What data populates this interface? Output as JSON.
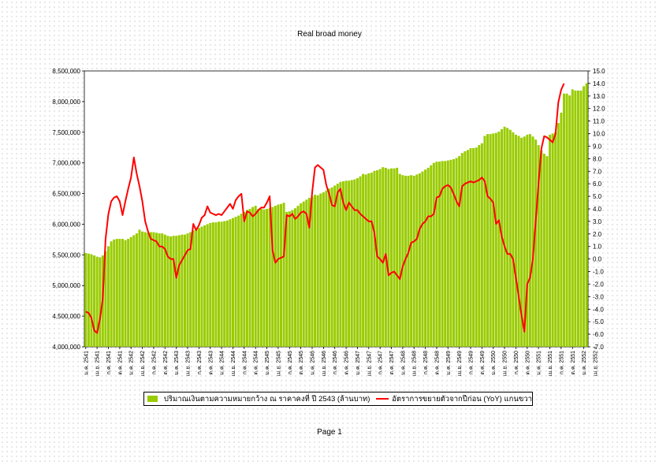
{
  "page": {
    "footer": "Page 1"
  },
  "chart_data": {
    "type": "bar+line",
    "title": "Real broad money",
    "legend": {
      "placement": "bottom"
    },
    "y_left": {
      "min": 4000000,
      "max": 8500000,
      "step": 500000,
      "tick_labels": [
        "4,000,000",
        "4,500,000",
        "5,000,000",
        "5,500,000",
        "6,000,000",
        "6,500,000",
        "7,000,000",
        "7,500,000",
        "8,000,000",
        "8,500,000"
      ]
    },
    "y_right": {
      "min": -7.0,
      "max": 15.0,
      "step": 1.0,
      "tick_labels": [
        "-7.0",
        "-6.0",
        "-5.0",
        "-4.0",
        "-3.0",
        "-2.0",
        "-1.0",
        "0.0",
        "1.0",
        "2.0",
        "3.0",
        "4.0",
        "5.0",
        "6.0",
        "7.0",
        "8.0",
        "9.0",
        "10.0",
        "11.0",
        "12.0",
        "13.0",
        "14.0",
        "15.0"
      ]
    },
    "x_labels": [
      {
        "i": 0,
        "text": "ม.ค. 2541"
      },
      {
        "i": 4,
        "text": "เม.ย. 2541"
      },
      {
        "i": 8,
        "text": "ก.ค. 2541"
      },
      {
        "i": 12,
        "text": "ต.ค. 2541"
      },
      {
        "i": 16,
        "text": "ม.ค. 2542"
      },
      {
        "i": 20,
        "text": "เม.ย. 2542"
      },
      {
        "i": 24,
        "text": "ก.ค. 2542"
      },
      {
        "i": 28,
        "text": "ต.ค. 2542"
      },
      {
        "i": 32,
        "text": "ม.ค. 2543"
      },
      {
        "i": 36,
        "text": "เม.ย. 2543"
      },
      {
        "i": 40,
        "text": "ก.ค. 2543"
      },
      {
        "i": 44,
        "text": "ต.ค. 2543"
      },
      {
        "i": 48,
        "text": "ม.ค. 2544"
      },
      {
        "i": 52,
        "text": "เม.ย. 2544"
      },
      {
        "i": 56,
        "text": "ก.ค. 2544"
      },
      {
        "i": 60,
        "text": "ต.ค. 2544"
      },
      {
        "i": 64,
        "text": "ม.ค. 2545"
      },
      {
        "i": 68,
        "text": "เม.ย. 2545"
      },
      {
        "i": 72,
        "text": "ก.ค. 2545"
      },
      {
        "i": 76,
        "text": "ต.ค. 2545"
      },
      {
        "i": 80,
        "text": "ม.ค. 2546"
      },
      {
        "i": 84,
        "text": "เม.ย. 2546"
      },
      {
        "i": 88,
        "text": "ก.ค. 2546"
      },
      {
        "i": 92,
        "text": "ต.ค. 2546"
      },
      {
        "i": 96,
        "text": "ม.ค. 2547"
      },
      {
        "i": 100,
        "text": "เม.ย. 2547"
      },
      {
        "i": 104,
        "text": "ก.ค. 2547"
      },
      {
        "i": 108,
        "text": "ต.ค. 2547"
      },
      {
        "i": 112,
        "text": "ม.ค. 2548"
      },
      {
        "i": 116,
        "text": "เม.ย. 2548"
      },
      {
        "i": 120,
        "text": "ก.ค. 2548"
      },
      {
        "i": 124,
        "text": "ต.ค. 2548"
      },
      {
        "i": 128,
        "text": "ม.ค. 2549"
      },
      {
        "i": 132,
        "text": "เม.ย. 2549"
      },
      {
        "i": 136,
        "text": "ก.ค. 2549"
      },
      {
        "i": 140,
        "text": "ต.ค. 2549"
      },
      {
        "i": 144,
        "text": "ม.ค. 2550"
      },
      {
        "i": 148,
        "text": "เม.ย. 2550"
      },
      {
        "i": 152,
        "text": "ก.ค. 2550"
      },
      {
        "i": 156,
        "text": "ต.ค. 2550"
      },
      {
        "i": 160,
        "text": "ม.ค. 2551"
      },
      {
        "i": 164,
        "text": "เม.ย. 2551"
      },
      {
        "i": 168,
        "text": "ก.ค. 2551"
      },
      {
        "i": 172,
        "text": "ต.ค. 2551"
      },
      {
        "i": 176,
        "text": "ม.ค. 2552"
      },
      {
        "i": 180,
        "text": "เม.ย. 2552"
      }
    ],
    "series": [
      {
        "name": "ปริมาณเงินตามความหมายกว้าง ณ ราคาคงที่ ปี 2543 (ล้านบาท)",
        "kind": "bar",
        "axis": "left",
        "color": "#99cc00",
        "values": [
          5530000,
          5520000,
          5510000,
          5490000,
          5470000,
          5460000,
          5490000,
          5560000,
          5640000,
          5720000,
          5750000,
          5760000,
          5760000,
          5760000,
          5740000,
          5760000,
          5790000,
          5820000,
          5850000,
          5910000,
          5880000,
          5870000,
          5860000,
          5870000,
          5870000,
          5860000,
          5850000,
          5850000,
          5830000,
          5810000,
          5800000,
          5810000,
          5810000,
          5820000,
          5830000,
          5830000,
          5850000,
          5870000,
          5900000,
          5920000,
          5940000,
          5960000,
          5980000,
          6000000,
          6020000,
          6030000,
          6030000,
          6040000,
          6040000,
          6050000,
          6060000,
          6080000,
          6100000,
          6120000,
          6140000,
          6170000,
          6200000,
          6230000,
          6250000,
          6280000,
          6300000,
          6250000,
          6250000,
          6240000,
          6250000,
          6260000,
          6280000,
          6300000,
          6320000,
          6330000,
          6350000,
          6200000,
          6210000,
          6230000,
          6260000,
          6300000,
          6340000,
          6370000,
          6400000,
          6430000,
          6450000,
          6480000,
          6470000,
          6500000,
          6520000,
          6550000,
          6580000,
          6600000,
          6630000,
          6660000,
          6690000,
          6700000,
          6710000,
          6710000,
          6720000,
          6730000,
          6750000,
          6780000,
          6820000,
          6810000,
          6830000,
          6840000,
          6870000,
          6880000,
          6900000,
          6930000,
          6920000,
          6900000,
          6910000,
          6910000,
          6920000,
          6820000,
          6800000,
          6790000,
          6790000,
          6800000,
          6790000,
          6810000,
          6830000,
          6860000,
          6890000,
          6920000,
          6960000,
          7000000,
          7020000,
          7020000,
          7030000,
          7030000,
          7040000,
          7050000,
          7060000,
          7080000,
          7110000,
          7160000,
          7190000,
          7210000,
          7240000,
          7240000,
          7250000,
          7290000,
          7320000,
          7440000,
          7470000,
          7470000,
          7480000,
          7490000,
          7510000,
          7550000,
          7590000,
          7570000,
          7540000,
          7500000,
          7460000,
          7440000,
          7410000,
          7430000,
          7460000,
          7470000,
          7430000,
          7380000,
          7290000,
          7200000,
          7150000,
          7110000,
          7460000,
          7480000,
          7500000,
          7650000,
          7820000,
          8130000,
          8130000,
          8100000,
          8200000,
          8180000,
          8180000,
          8180000,
          8250000,
          8300000
        ]
      },
      {
        "name": "อัตราการขยายตัวจากปีก่อน (YoY) แกนขวา",
        "kind": "line",
        "axis": "right",
        "color": "#ff0000",
        "values": [
          -4.2,
          -4.3,
          -4.7,
          -5.7,
          -5.9,
          -4.8,
          -3.2,
          1.6,
          3.6,
          4.6,
          4.9,
          5.0,
          4.6,
          3.5,
          4.6,
          5.6,
          6.5,
          8.1,
          6.8,
          5.8,
          4.6,
          3.0,
          2.2,
          1.6,
          1.5,
          1.4,
          1.0,
          1.0,
          0.8,
          0.2,
          0.0,
          0.0,
          -1.5,
          -0.5,
          -0.1,
          0.3,
          0.7,
          0.8,
          2.8,
          2.3,
          2.7,
          3.3,
          3.5,
          4.2,
          3.7,
          3.6,
          3.5,
          3.6,
          3.5,
          3.8,
          4.1,
          4.4,
          4.0,
          4.7,
          5.0,
          5.2,
          3.0,
          3.8,
          3.7,
          3.4,
          3.6,
          3.9,
          4.1,
          4.1,
          4.5,
          5.0,
          0.7,
          -0.3,
          0.0,
          0.1,
          0.2,
          3.5,
          3.4,
          3.6,
          3.2,
          3.4,
          3.7,
          3.8,
          3.6,
          2.5,
          5.3,
          7.3,
          7.5,
          7.3,
          7.1,
          5.9,
          5.2,
          4.3,
          4.2,
          5.3,
          5.6,
          4.5,
          3.9,
          4.5,
          4.2,
          3.9,
          3.9,
          3.6,
          3.4,
          3.2,
          3.0,
          3.0,
          2.1,
          0.2,
          0.0,
          -0.3,
          0.4,
          -1.3,
          -1.1,
          -1.0,
          -1.3,
          -1.6,
          -0.6,
          0.0,
          0.5,
          1.3,
          1.4,
          1.6,
          2.4,
          2.8,
          3.0,
          3.4,
          3.4,
          3.6,
          4.9,
          5.0,
          5.6,
          5.8,
          5.9,
          5.7,
          5.2,
          4.6,
          4.2,
          5.8,
          6.0,
          6.1,
          6.2,
          6.1,
          6.2,
          6.3,
          6.5,
          6.2,
          5.0,
          4.8,
          4.5,
          2.8,
          3.1,
          1.8,
          1.0,
          0.4,
          0.4,
          0.0,
          -1.5,
          -3.0,
          -4.5,
          -5.8,
          -2.0,
          -1.5,
          0.0,
          3.0,
          6.0,
          8.8,
          9.8,
          9.7,
          9.5,
          9.3,
          10.0,
          12.5,
          13.5,
          14.0
        ]
      }
    ]
  }
}
